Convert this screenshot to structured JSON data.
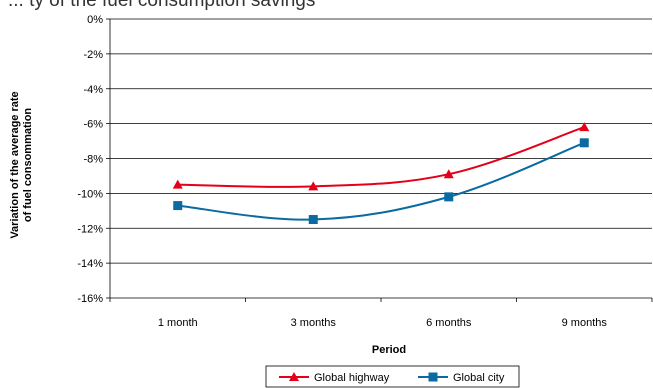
{
  "chart_data": {
    "type": "line",
    "title": "... ty of the fuel consumption savings",
    "xlabel": "Period",
    "ylabel_lines": [
      "Variation of the average rate",
      "of fuel consommation"
    ],
    "categories": [
      "1 month",
      "3 months",
      "6 months",
      "9 months"
    ],
    "y_ticks": [
      "0%",
      "-2%",
      "-4%",
      "-6%",
      "-8%",
      "-10%",
      "-12%",
      "-14%",
      "-16%"
    ],
    "ylim": [
      -16,
      0
    ],
    "grid": true,
    "legend_position": "bottom",
    "series": [
      {
        "name": "Global highway",
        "values": [
          -9.5,
          -9.6,
          -8.9,
          -6.2
        ],
        "color": "#e2001a",
        "marker": "triangle"
      },
      {
        "name": "Global city",
        "values": [
          -10.7,
          -11.5,
          -10.2,
          -7.1
        ],
        "color": "#0a6aa1",
        "marker": "square"
      }
    ]
  }
}
